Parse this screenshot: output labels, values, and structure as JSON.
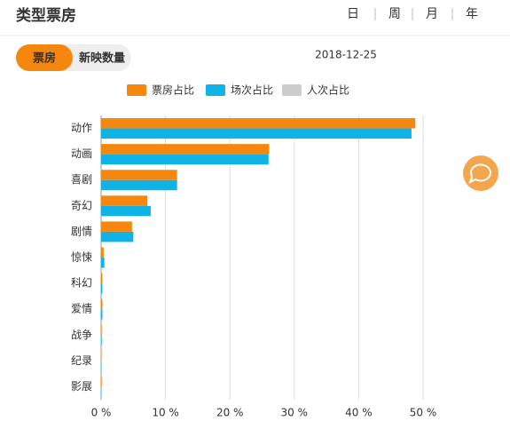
{
  "header": {
    "title": "类型票房",
    "periods": [
      "日",
      "周",
      "月",
      "年"
    ]
  },
  "tabs": [
    "票房",
    "新映数量"
  ],
  "date": "2018-12-25",
  "chart_data": {
    "type": "hbar",
    "categories": [
      "动作",
      "动画",
      "喜剧",
      "奇幻",
      "剧情",
      "惊悚",
      "科幻",
      "爱情",
      "战争",
      "纪录",
      "影展"
    ],
    "series": [
      {
        "name": "票房占比",
        "color": "#f5870f",
        "values": [
          48.8,
          26.1,
          11.8,
          7.2,
          4.8,
          0.4,
          0.2,
          0.2,
          0.1,
          0.05,
          0.1
        ]
      },
      {
        "name": "场次占比",
        "color": "#0fb3e6",
        "values": [
          48.2,
          26.0,
          11.8,
          7.7,
          5.0,
          0.5,
          0.2,
          0.2,
          0.1,
          0.05,
          0.05
        ]
      },
      {
        "name": "人次占比",
        "color": "#cccccc",
        "hidden": true
      }
    ],
    "xlim": [
      0,
      50
    ],
    "xticks": [
      {
        "value": 0,
        "label": "0 %"
      },
      {
        "value": 10,
        "label": "10 %"
      },
      {
        "value": 20,
        "label": "20 %"
      },
      {
        "value": 30,
        "label": "30 %"
      },
      {
        "value": 40,
        "label": "40 %"
      },
      {
        "value": 50,
        "label": "50 %"
      }
    ],
    "grid": true,
    "legend": "top"
  }
}
